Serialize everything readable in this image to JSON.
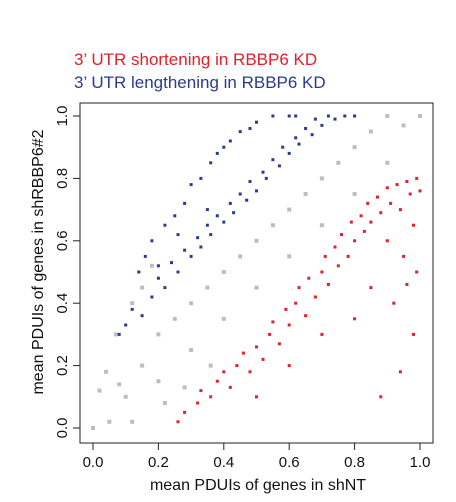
{
  "chart_data": {
    "type": "scatter",
    "title": "",
    "legend": [
      {
        "label": "3’ UTR shortening in RBBP6 KD",
        "color": "#e0202a"
      },
      {
        "label": "3’ UTR lengthening in RBBP6 KD",
        "color": "#2b3a8f"
      }
    ],
    "legend_placement": "top-left",
    "xlabel": "mean PDUIs of genes in shNT",
    "ylabel": "mean PDUIs of genes in shRBBP6#2",
    "xlim": [
      0,
      1
    ],
    "ylim": [
      0,
      1
    ],
    "x_ticks": [
      "0.0",
      "0.2",
      "0.4",
      "0.6",
      "0.8",
      "1.0"
    ],
    "y_ticks": [
      "0.0",
      "0.2",
      "0.4",
      "0.6",
      "0.8",
      "1.0"
    ],
    "grid": false,
    "series": [
      {
        "color": "#bdbdbd",
        "points": [
          [
            0.0,
            0.0
          ],
          [
            0.05,
            0.02
          ],
          [
            0.08,
            0.14
          ],
          [
            0.1,
            0.1
          ],
          [
            0.15,
            0.2
          ],
          [
            0.2,
            0.15
          ],
          [
            0.2,
            0.3
          ],
          [
            0.25,
            0.35
          ],
          [
            0.3,
            0.25
          ],
          [
            0.3,
            0.4
          ],
          [
            0.35,
            0.45
          ],
          [
            0.4,
            0.35
          ],
          [
            0.4,
            0.5
          ],
          [
            0.45,
            0.55
          ],
          [
            0.5,
            0.45
          ],
          [
            0.5,
            0.6
          ],
          [
            0.55,
            0.65
          ],
          [
            0.6,
            0.55
          ],
          [
            0.6,
            0.7
          ],
          [
            0.65,
            0.75
          ],
          [
            0.7,
            0.65
          ],
          [
            0.7,
            0.8
          ],
          [
            0.75,
            0.85
          ],
          [
            0.8,
            0.75
          ],
          [
            0.8,
            0.9
          ],
          [
            0.85,
            0.95
          ],
          [
            0.9,
            0.85
          ],
          [
            0.9,
            1.0
          ],
          [
            0.95,
            0.97
          ],
          [
            1.0,
            1.0
          ],
          [
            0.02,
            0.12
          ],
          [
            0.04,
            0.18
          ],
          [
            0.07,
            0.3
          ],
          [
            0.12,
            0.4
          ],
          [
            0.15,
            0.45
          ],
          [
            0.18,
            0.52
          ],
          [
            0.12,
            0.02
          ],
          [
            0.22,
            0.08
          ],
          [
            0.28,
            0.13
          ],
          [
            0.36,
            0.2
          ]
        ]
      },
      {
        "name": "3’ UTR shortening in RBBP6 KD",
        "color": "#e0202a",
        "points": [
          [
            0.26,
            0.02
          ],
          [
            0.28,
            0.05
          ],
          [
            0.32,
            0.08
          ],
          [
            0.33,
            0.12
          ],
          [
            0.36,
            0.1
          ],
          [
            0.38,
            0.15
          ],
          [
            0.4,
            0.18
          ],
          [
            0.42,
            0.13
          ],
          [
            0.44,
            0.2
          ],
          [
            0.46,
            0.24
          ],
          [
            0.48,
            0.18
          ],
          [
            0.5,
            0.26
          ],
          [
            0.52,
            0.22
          ],
          [
            0.54,
            0.3
          ],
          [
            0.55,
            0.34
          ],
          [
            0.57,
            0.27
          ],
          [
            0.59,
            0.38
          ],
          [
            0.6,
            0.33
          ],
          [
            0.62,
            0.4
          ],
          [
            0.63,
            0.45
          ],
          [
            0.65,
            0.36
          ],
          [
            0.66,
            0.48
          ],
          [
            0.68,
            0.42
          ],
          [
            0.7,
            0.5
          ],
          [
            0.71,
            0.55
          ],
          [
            0.72,
            0.46
          ],
          [
            0.74,
            0.58
          ],
          [
            0.75,
            0.52
          ],
          [
            0.76,
            0.62
          ],
          [
            0.78,
            0.55
          ],
          [
            0.79,
            0.66
          ],
          [
            0.8,
            0.6
          ],
          [
            0.82,
            0.68
          ],
          [
            0.83,
            0.63
          ],
          [
            0.84,
            0.72
          ],
          [
            0.85,
            0.66
          ],
          [
            0.87,
            0.74
          ],
          [
            0.88,
            0.69
          ],
          [
            0.9,
            0.77
          ],
          [
            0.91,
            0.72
          ],
          [
            0.93,
            0.78
          ],
          [
            0.94,
            0.7
          ],
          [
            0.96,
            0.79
          ],
          [
            0.97,
            0.75
          ],
          [
            0.99,
            0.8
          ],
          [
            1.0,
            0.76
          ],
          [
            0.9,
            0.6
          ],
          [
            0.95,
            0.55
          ],
          [
            0.85,
            0.45
          ],
          [
            0.8,
            0.35
          ],
          [
            0.7,
            0.3
          ],
          [
            0.6,
            0.2
          ],
          [
            0.5,
            0.1
          ],
          [
            0.88,
            0.1
          ],
          [
            0.94,
            0.18
          ],
          [
            0.98,
            0.3
          ],
          [
            0.99,
            0.5
          ],
          [
            0.98,
            0.65
          ],
          [
            0.92,
            0.4
          ],
          [
            0.96,
            0.46
          ]
        ]
      },
      {
        "name": "3’ UTR lengthening in RBBP6 KD",
        "color": "#2b3a8f",
        "points": [
          [
            0.1,
            0.33
          ],
          [
            0.12,
            0.38
          ],
          [
            0.15,
            0.36
          ],
          [
            0.18,
            0.42
          ],
          [
            0.2,
            0.48
          ],
          [
            0.22,
            0.45
          ],
          [
            0.24,
            0.53
          ],
          [
            0.26,
            0.5
          ],
          [
            0.28,
            0.57
          ],
          [
            0.3,
            0.55
          ],
          [
            0.32,
            0.61
          ],
          [
            0.33,
            0.58
          ],
          [
            0.35,
            0.65
          ],
          [
            0.36,
            0.62
          ],
          [
            0.38,
            0.68
          ],
          [
            0.4,
            0.66
          ],
          [
            0.42,
            0.72
          ],
          [
            0.43,
            0.69
          ],
          [
            0.45,
            0.75
          ],
          [
            0.47,
            0.73
          ],
          [
            0.48,
            0.79
          ],
          [
            0.5,
            0.76
          ],
          [
            0.52,
            0.82
          ],
          [
            0.53,
            0.8
          ],
          [
            0.55,
            0.86
          ],
          [
            0.57,
            0.84
          ],
          [
            0.58,
            0.9
          ],
          [
            0.6,
            0.88
          ],
          [
            0.62,
            0.93
          ],
          [
            0.63,
            0.91
          ],
          [
            0.65,
            0.96
          ],
          [
            0.67,
            0.94
          ],
          [
            0.68,
            0.99
          ],
          [
            0.7,
            0.97
          ],
          [
            0.72,
            1.0
          ],
          [
            0.74,
            0.99
          ],
          [
            0.77,
            1.0
          ],
          [
            0.8,
            1.0
          ],
          [
            0.33,
            0.8
          ],
          [
            0.4,
            0.9
          ],
          [
            0.45,
            0.95
          ],
          [
            0.5,
            0.98
          ],
          [
            0.28,
            0.72
          ],
          [
            0.22,
            0.65
          ],
          [
            0.18,
            0.6
          ],
          [
            0.14,
            0.5
          ],
          [
            0.36,
            0.85
          ],
          [
            0.55,
            1.0
          ],
          [
            0.6,
            1.0
          ],
          [
            0.3,
            0.78
          ],
          [
            0.25,
            0.68
          ],
          [
            0.38,
            0.88
          ],
          [
            0.42,
            0.92
          ],
          [
            0.16,
            0.55
          ],
          [
            0.08,
            0.3
          ],
          [
            0.62,
            1.0
          ],
          [
            0.48,
            0.96
          ],
          [
            0.35,
            0.7
          ],
          [
            0.26,
            0.62
          ],
          [
            0.2,
            0.52
          ]
        ]
      }
    ]
  }
}
